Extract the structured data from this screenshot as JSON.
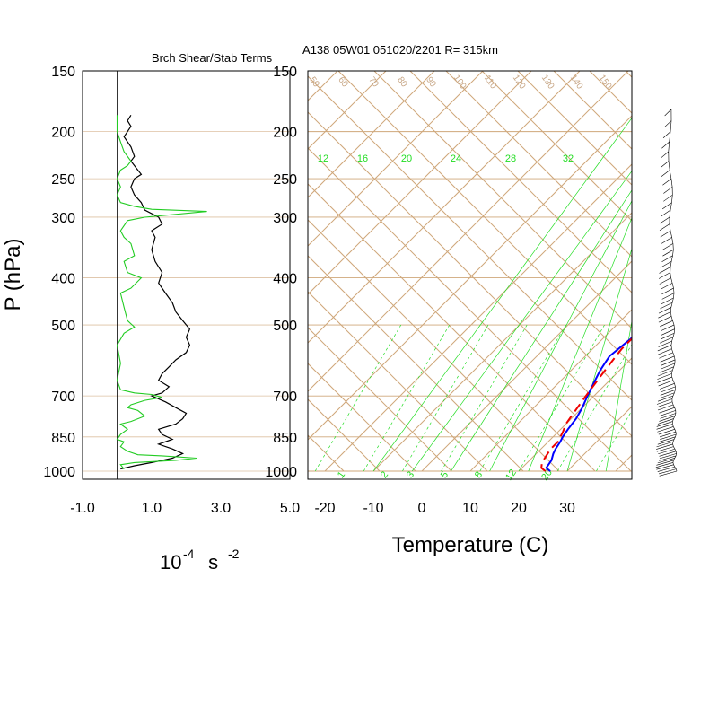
{
  "titles": {
    "left": "Brch Shear/Stab Terms",
    "right": "A138 05W01 051020/2201 R= 315km"
  },
  "axes": {
    "y_label": "P (hPa)",
    "x_label_right": "Temperature (C)",
    "x_unit_left": {
      "base": "10",
      "exp1": "-4",
      "mid": " s ",
      "exp2": "-2"
    }
  },
  "colors": {
    "grid": "#cfa77a",
    "moist": "#22dd22",
    "temperature": "#0000ff",
    "dewpoint": "#ee0000",
    "shear_profile": "#000000",
    "stability_profile": "#22cc22"
  },
  "chart_data": [
    {
      "type": "line",
      "title": "Brch Shear/Stab Terms",
      "ylabel": "P (hPa)",
      "xlabel": "10^-4 s^-2",
      "y_scale": "log",
      "ylim": [
        1000,
        150
      ],
      "xlim": [
        -1.0,
        5.0
      ],
      "x_ticks": [
        "-1.0",
        "1.0",
        "3.0",
        "5.0"
      ],
      "y_ticks": [
        "150",
        "200",
        "250",
        "300",
        "400",
        "500",
        "700",
        "850",
        "1000"
      ],
      "grid": true,
      "series": [
        {
          "color": "black",
          "points": [
            [
              0.1,
              990
            ],
            [
              0.5,
              975
            ],
            [
              1.0,
              960
            ],
            [
              1.6,
              940
            ],
            [
              1.9,
              920
            ],
            [
              1.6,
              900
            ],
            [
              1.2,
              880
            ],
            [
              1.6,
              860
            ],
            [
              1.3,
              840
            ],
            [
              1.2,
              820
            ],
            [
              1.7,
              800
            ],
            [
              1.9,
              780
            ],
            [
              2.0,
              760
            ],
            [
              1.7,
              740
            ],
            [
              1.4,
              720
            ],
            [
              1.0,
              700
            ],
            [
              1.3,
              690
            ],
            [
              1.5,
              670
            ],
            [
              1.2,
              650
            ],
            [
              1.3,
              630
            ],
            [
              1.5,
              610
            ],
            [
              1.7,
              590
            ],
            [
              2.0,
              570
            ],
            [
              2.1,
              550
            ],
            [
              2.0,
              530
            ],
            [
              2.1,
              510
            ],
            [
              1.9,
              490
            ],
            [
              1.7,
              470
            ],
            [
              1.6,
              450
            ],
            [
              1.4,
              430
            ],
            [
              1.2,
              410
            ],
            [
              1.3,
              390
            ],
            [
              1.1,
              370
            ],
            [
              1.0,
              350
            ],
            [
              1.1,
              330
            ],
            [
              1.0,
              320
            ],
            [
              1.3,
              310
            ],
            [
              1.2,
              300
            ],
            [
              0.8,
              290
            ],
            [
              0.7,
              280
            ],
            [
              0.5,
              270
            ],
            [
              0.4,
              260
            ],
            [
              0.5,
              250
            ],
            [
              0.7,
              245
            ],
            [
              0.6,
              240
            ],
            [
              0.4,
              230
            ],
            [
              0.5,
              225
            ],
            [
              0.4,
              215
            ],
            [
              0.2,
              205
            ],
            [
              0.3,
              200
            ],
            [
              0.4,
              195
            ],
            [
              0.3,
              190
            ],
            [
              0.4,
              185
            ]
          ]
        },
        {
          "color": "green",
          "points": [
            [
              0.2,
              990
            ],
            [
              0.1,
              970
            ],
            [
              0.5,
              960
            ],
            [
              1.7,
              950
            ],
            [
              2.3,
              940
            ],
            [
              1.3,
              930
            ],
            [
              0.6,
              925
            ],
            [
              0.3,
              910
            ],
            [
              0.1,
              890
            ],
            [
              0.2,
              870
            ],
            [
              0.0,
              860
            ],
            [
              0.1,
              840
            ],
            [
              0.3,
              820
            ],
            [
              0.1,
              800
            ],
            [
              0.4,
              790
            ],
            [
              0.8,
              770
            ],
            [
              0.6,
              750
            ],
            [
              0.3,
              740
            ],
            [
              0.4,
              730
            ],
            [
              0.8,
              715
            ],
            [
              1.3,
              705
            ],
            [
              1.0,
              695
            ],
            [
              0.5,
              690
            ],
            [
              0.1,
              680
            ],
            [
              0.0,
              650
            ],
            [
              0.1,
              600
            ],
            [
              0.0,
              550
            ],
            [
              0.2,
              520
            ],
            [
              0.5,
              505
            ],
            [
              0.3,
              490
            ],
            [
              0.2,
              460
            ],
            [
              0.1,
              430
            ],
            [
              0.4,
              420
            ],
            [
              0.7,
              400
            ],
            [
              0.3,
              390
            ],
            [
              0.2,
              370
            ],
            [
              0.5,
              360
            ],
            [
              0.4,
              340
            ],
            [
              0.2,
              330
            ],
            [
              0.1,
              320
            ],
            [
              0.3,
              305
            ],
            [
              0.8,
              300
            ],
            [
              2.6,
              292
            ],
            [
              1.0,
              289
            ],
            [
              0.5,
              285
            ],
            [
              0.1,
              280
            ],
            [
              0.0,
              270
            ],
            [
              0.1,
              260
            ],
            [
              0.0,
              250
            ],
            [
              0.1,
              240
            ],
            [
              0.3,
              235
            ],
            [
              0.4,
              230
            ],
            [
              0.2,
              220
            ],
            [
              0.1,
              210
            ],
            [
              0.0,
              200
            ],
            [
              0.0,
              185
            ]
          ]
        }
      ]
    },
    {
      "type": "line",
      "subtype": "skew-T log-P",
      "title": "A138 05W01 051020/2201 R= 315km",
      "xlabel": "Temperature (C)",
      "ylabel": "P (hPa)",
      "y_scale": "log",
      "ylim": [
        1000,
        150
      ],
      "xlim": [
        -24,
        45
      ],
      "x_ticks": [
        "-20",
        "-10",
        "0",
        "10",
        "20",
        "30"
      ],
      "y_ticks": [
        "150",
        "200",
        "250",
        "300",
        "400",
        "500",
        "700",
        "850",
        "1000"
      ],
      "mixing_ratio_labels_top": [
        "12",
        "16",
        "20",
        "24",
        "28",
        "32"
      ],
      "mixing_ratio_labels_bottom": [
        "1",
        "2",
        "3",
        "5",
        "8",
        "12",
        "20"
      ],
      "isotherm_labels_top": [
        "50",
        "60",
        "70",
        "80",
        "90",
        "100",
        "110",
        "120",
        "130",
        "140",
        "150"
      ],
      "series": [
        {
          "name_hidden": "temperature",
          "color": "blue",
          "points": [
            [
              26.5,
              1000
            ],
            [
              25,
              985
            ],
            [
              24.5,
              950
            ],
            [
              23.5,
              920
            ],
            [
              23,
              900
            ],
            [
              22.5,
              870
            ],
            [
              22,
              850
            ],
            [
              21.5,
              820
            ],
            [
              21,
              780
            ],
            [
              20,
              740
            ],
            [
              19,
              710
            ],
            [
              18,
              680
            ],
            [
              17,
              650
            ],
            [
              16,
              620
            ],
            [
              15.5,
              600
            ],
            [
              15,
              580
            ],
            [
              15.5,
              550
            ],
            [
              16,
              520
            ],
            [
              16,
              500
            ],
            [
              15.8,
              480
            ],
            [
              15,
              450
            ],
            [
              14,
              420
            ],
            [
              12.5,
              390
            ],
            [
              11,
              360
            ],
            [
              9.5,
              330
            ],
            [
              8,
              300
            ],
            [
              6.5,
              280
            ],
            [
              5,
              260
            ],
            [
              3.5,
              245
            ],
            [
              2.5,
              230
            ],
            [
              1.5,
              215
            ],
            [
              0.5,
              200
            ],
            [
              -0.5,
              190
            ],
            [
              -1.5,
              180
            ],
            [
              -2.5,
              170
            ]
          ]
        },
        {
          "name_hidden": "dewpoint",
          "color": "red",
          "points": [
            [
              25.5,
              1000
            ],
            [
              24,
              985
            ],
            [
              23,
              960
            ],
            [
              22.5,
              930
            ],
            [
              22,
              900
            ],
            [
              22,
              870
            ],
            [
              21.5,
              850
            ],
            [
              21,
              830
            ],
            [
              20,
              800
            ],
            [
              19.5,
              770
            ],
            [
              19,
              740
            ],
            [
              18.5,
              710
            ],
            [
              18,
              680
            ],
            [
              17.5,
              650
            ],
            [
              17,
              620
            ],
            [
              16.5,
              590
            ],
            [
              16,
              560
            ],
            [
              16,
              530
            ],
            [
              16,
              500
            ],
            [
              15.5,
              480
            ],
            [
              14.5,
              450
            ],
            [
              13.5,
              420
            ],
            [
              12,
              400
            ],
            [
              10.5,
              380
            ],
            [
              9.5,
              360
            ],
            [
              8.5,
              340
            ],
            [
              7,
              320
            ],
            [
              6,
              300
            ],
            [
              4.5,
              285
            ],
            [
              3,
              270
            ],
            [
              2,
              250
            ],
            [
              1,
              235
            ],
            [
              0,
              225
            ],
            [
              -1,
              220
            ],
            [
              -3,
              212
            ],
            [
              -4.5,
              205
            ]
          ]
        }
      ],
      "wind_barbs": "profile on right edge, 1000-180 hPa"
    }
  ]
}
